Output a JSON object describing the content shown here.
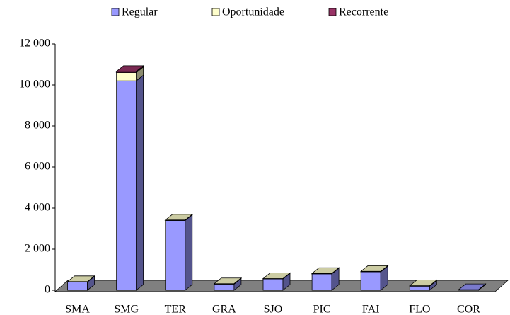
{
  "chart_data": {
    "type": "bar3d_stacked",
    "categories": [
      "SMA",
      "SMG",
      "TER",
      "GRA",
      "SJO",
      "PIC",
      "FAI",
      "FLO",
      "COR"
    ],
    "series": [
      {
        "name": "Regular",
        "color": "#9999ff",
        "values": [
          400,
          10200,
          3400,
          300,
          550,
          800,
          900,
          200,
          30
        ]
      },
      {
        "name": "Oportunidade",
        "color": "#ffffcc",
        "values": [
          20,
          400,
          20,
          20,
          20,
          20,
          20,
          20,
          0
        ]
      },
      {
        "name": "Recorrente",
        "color": "#993366",
        "values": [
          0,
          60,
          0,
          0,
          0,
          0,
          0,
          0,
          0
        ]
      }
    ],
    "ylim": [
      0,
      12000
    ],
    "yticks": [
      0,
      {
        "value": 2000,
        "label": "2 000"
      },
      {
        "value": 4000,
        "label": "4 000"
      },
      {
        "value": 6000,
        "label": "6 000"
      },
      {
        "value": 8000,
        "label": "8 000"
      },
      {
        "value": 10000,
        "label": "10 000"
      },
      {
        "value": 12000,
        "label": "12 000"
      }
    ],
    "legend": "top"
  }
}
